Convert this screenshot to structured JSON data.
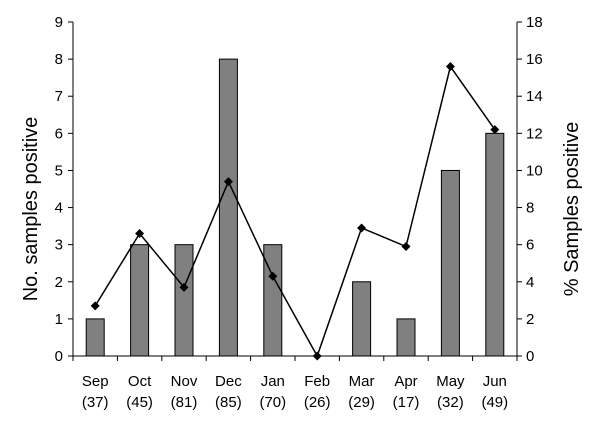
{
  "chart_data": {
    "type": "bar",
    "categories": [
      "Sep",
      "Oct",
      "Nov",
      "Dec",
      "Jan",
      "Feb",
      "Mar",
      "Apr",
      "May",
      "Jun"
    ],
    "category_counts": [
      "(37)",
      "(45)",
      "(81)",
      "(85)",
      "(70)",
      "(26)",
      "(29)",
      "(17)",
      "(32)",
      "(49)"
    ],
    "series": [
      {
        "type": "bar",
        "axis": "left",
        "values": [
          1,
          3,
          3,
          8,
          3,
          0,
          2,
          1,
          5,
          6
        ],
        "color": "#808080"
      },
      {
        "type": "line",
        "axis": "right",
        "values": [
          2.7,
          6.6,
          3.7,
          9.4,
          4.3,
          0,
          6.9,
          5.9,
          15.6,
          12.2
        ],
        "color": "#000000",
        "marker": "diamond"
      }
    ],
    "ylabel": "No. samples positive",
    "ylabel_right": "% Samples positive",
    "ylim": [
      0,
      9
    ],
    "ylim_right": [
      0,
      18
    ],
    "yticks": [
      "0",
      "1",
      "2",
      "3",
      "4",
      "5",
      "6",
      "7",
      "8",
      "9"
    ],
    "yticks_right": [
      "0",
      "2",
      "4",
      "6",
      "8",
      "10",
      "12",
      "14",
      "16",
      "18"
    ],
    "grid": false,
    "legend": "none"
  }
}
